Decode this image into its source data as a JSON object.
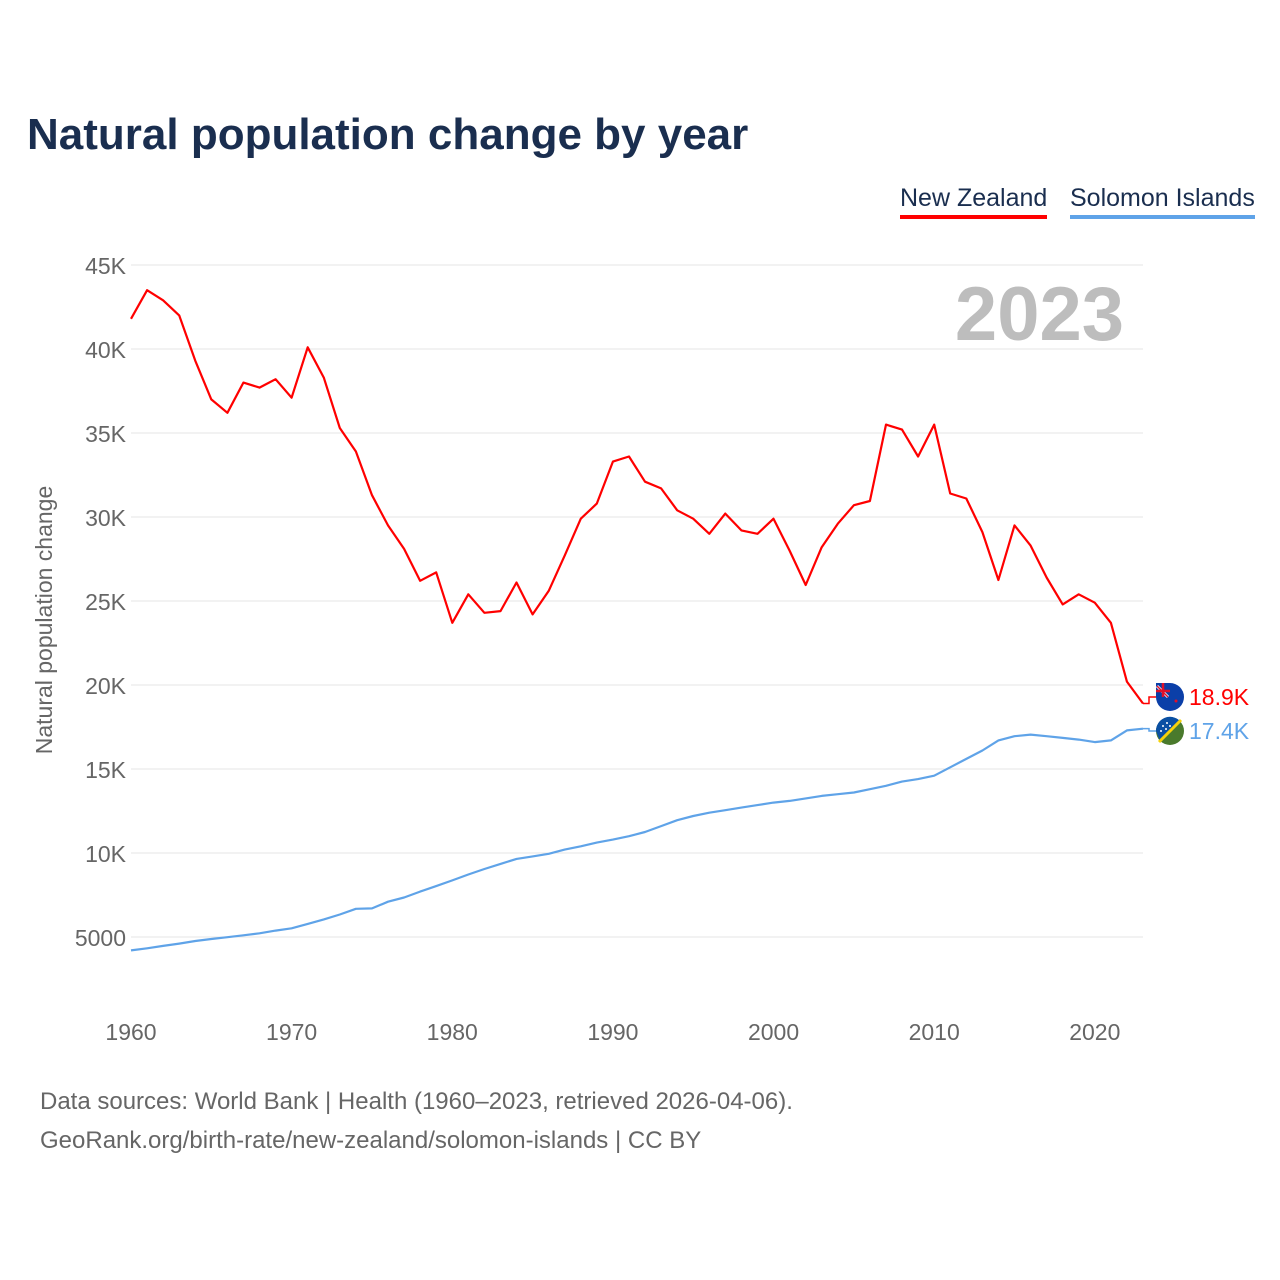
{
  "title": "Natural population change by year",
  "footer": {
    "line1": "Data sources: World Bank | Health (1960–2023, retrieved 2026-04-06).",
    "line2": "GeoRank.org/birth-rate/new-zealand/solomon-islands | CC BY"
  },
  "chart_data": {
    "type": "line",
    "title": "Natural population change by year",
    "xlabel": "",
    "ylabel": "Natural population change",
    "year_label": "2023",
    "xlim": [
      1960,
      2023
    ],
    "ylim": [
      5000,
      45000
    ],
    "x_ticks": [
      1960,
      1970,
      1980,
      1990,
      2000,
      2010,
      2020
    ],
    "x_tick_labels": [
      "1960",
      "1970",
      "1980",
      "1990",
      "2000",
      "2010",
      "2020"
    ],
    "y_ticks": [
      5000,
      10000,
      15000,
      20000,
      25000,
      30000,
      35000,
      40000,
      45000
    ],
    "y_tick_labels": [
      "5000",
      "10K",
      "15K",
      "20K",
      "25K",
      "30K",
      "35K",
      "40K",
      "45K"
    ],
    "grid": true,
    "legend_position": "top-right",
    "x": [
      1960,
      1961,
      1962,
      1963,
      1964,
      1965,
      1966,
      1967,
      1968,
      1969,
      1970,
      1971,
      1972,
      1973,
      1974,
      1975,
      1976,
      1977,
      1978,
      1979,
      1980,
      1981,
      1982,
      1983,
      1984,
      1985,
      1986,
      1987,
      1988,
      1989,
      1990,
      1991,
      1992,
      1993,
      1994,
      1995,
      1996,
      1997,
      1998,
      1999,
      2000,
      2001,
      2002,
      2003,
      2004,
      2005,
      2006,
      2007,
      2008,
      2009,
      2010,
      2011,
      2012,
      2013,
      2014,
      2015,
      2016,
      2017,
      2018,
      2019,
      2020,
      2021,
      2022,
      2023
    ],
    "series": [
      {
        "name": "New Zealand",
        "color": "#ff0000",
        "end_label": "18.9K",
        "flag": "new-zealand-flag",
        "values": [
          41800,
          43500,
          42900,
          42000,
          39300,
          37000,
          36200,
          38000,
          37700,
          38200,
          37100,
          40100,
          38300,
          35300,
          33900,
          31300,
          29500,
          28100,
          26200,
          26700,
          23700,
          25400,
          24300,
          24400,
          26100,
          24200,
          25600,
          27700,
          29900,
          30800,
          33300,
          33600,
          32100,
          31700,
          30400,
          29900,
          29000,
          30200,
          29200,
          29000,
          29900,
          28000,
          25950,
          28200,
          29600,
          30700,
          30950,
          35500,
          35200,
          33600,
          35500,
          31400,
          31100,
          29100,
          26250,
          29500,
          28300,
          26400,
          24800,
          25400,
          24900,
          23700,
          20200,
          18900
        ]
      },
      {
        "name": "Solomon Islands",
        "color": "#5fa3e8",
        "end_label": "17.4K",
        "flag": "solomon-islands-flag",
        "values": [
          4200,
          4330,
          4470,
          4610,
          4760,
          4880,
          4990,
          5100,
          5220,
          5380,
          5520,
          5780,
          6050,
          6340,
          6680,
          6700,
          7100,
          7350,
          7700,
          8030,
          8370,
          8720,
          9050,
          9350,
          9650,
          9800,
          9950,
          10200,
          10400,
          10620,
          10800,
          11000,
          11250,
          11600,
          11950,
          12200,
          12400,
          12550,
          12700,
          12850,
          13000,
          13100,
          13250,
          13400,
          13500,
          13600,
          13800,
          14000,
          14250,
          14400,
          14600,
          15100,
          15600,
          16100,
          16700,
          16950,
          17050,
          16950,
          16850,
          16750,
          16600,
          16700,
          17300,
          17400
        ]
      }
    ]
  }
}
